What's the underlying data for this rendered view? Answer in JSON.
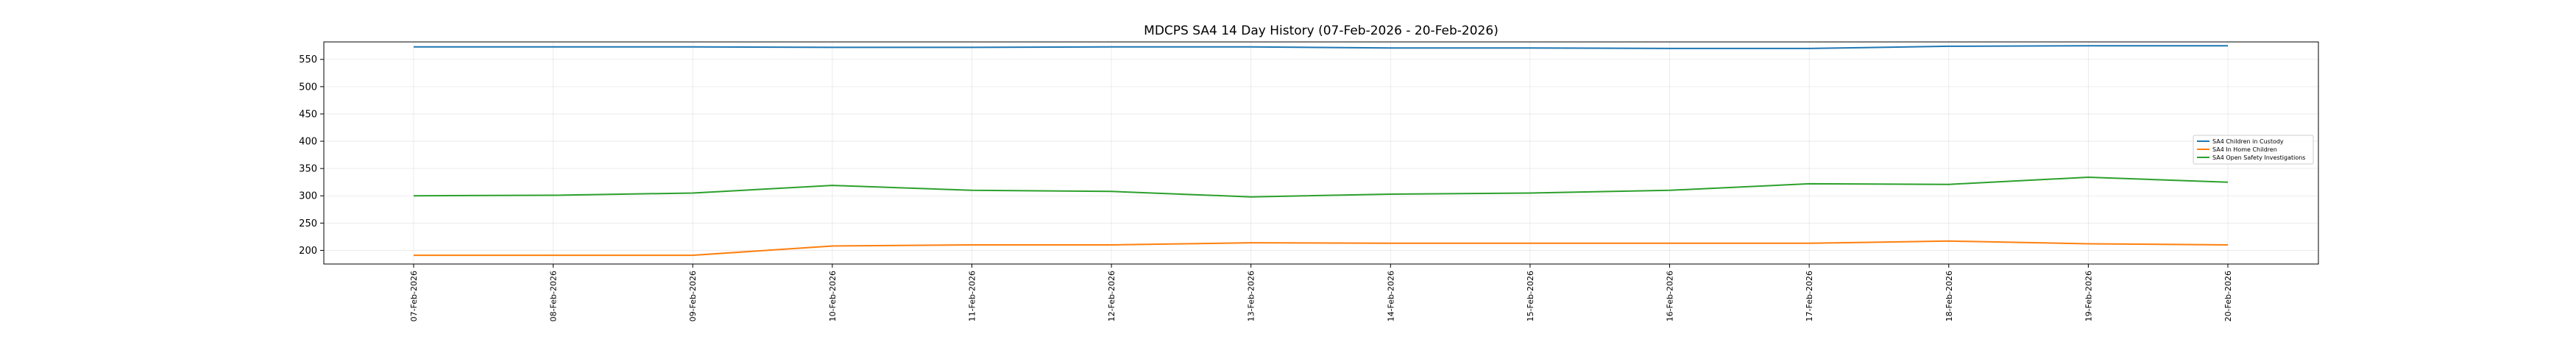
{
  "chart_data": {
    "type": "line",
    "title": "MDCPS SA4 14 Day History (07-Feb-2026 - 20-Feb-2026)",
    "xlabel": "",
    "ylabel": "",
    "categories": [
      "07-Feb-2026",
      "08-Feb-2026",
      "09-Feb-2026",
      "10-Feb-2026",
      "11-Feb-2026",
      "12-Feb-2026",
      "13-Feb-2026",
      "14-Feb-2026",
      "15-Feb-2026",
      "16-Feb-2026",
      "17-Feb-2026",
      "18-Feb-2026",
      "19-Feb-2026",
      "20-Feb-2026"
    ],
    "ylim": [
      175,
      582
    ],
    "yticks": [
      200,
      250,
      300,
      350,
      400,
      450,
      500,
      550
    ],
    "grid": true,
    "legend_position": "right",
    "series": [
      {
        "name": "SA4 Children in Custody",
        "color": "#1f77b4",
        "values": [
          573,
          573,
          573,
          572,
          572,
          573,
          573,
          571,
          571,
          570,
          570,
          574,
          575,
          575
        ]
      },
      {
        "name": "SA4 In Home Children",
        "color": "#ff7f0e",
        "values": [
          191,
          191,
          191,
          208,
          210,
          210,
          214,
          213,
          213,
          213,
          213,
          217,
          212,
          210
        ]
      },
      {
        "name": "SA4 Open Safety Investigations",
        "color": "#2ca02c",
        "values": [
          300,
          301,
          305,
          319,
          310,
          308,
          298,
          303,
          305,
          310,
          322,
          321,
          334,
          325
        ]
      }
    ]
  }
}
